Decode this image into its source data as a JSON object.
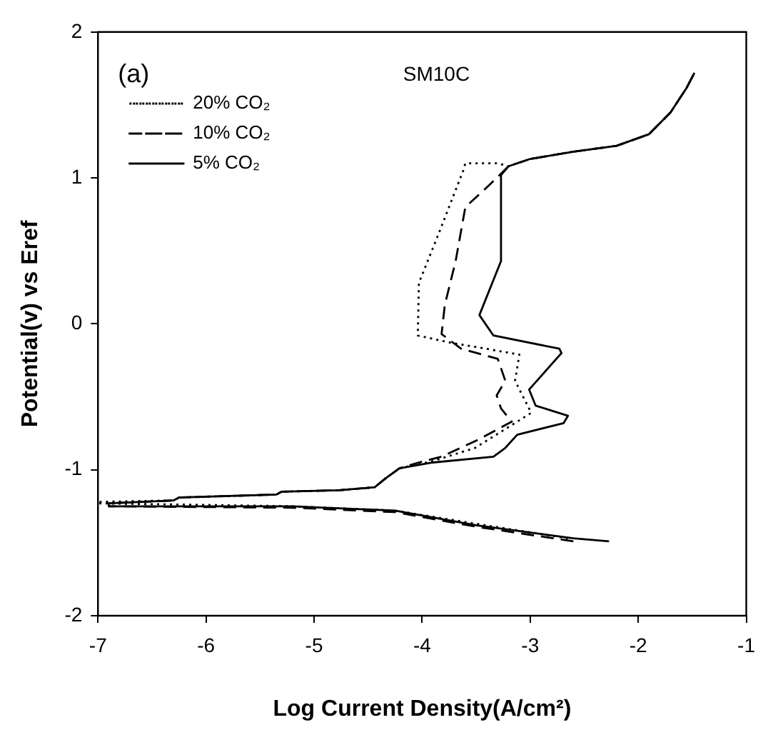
{
  "chart_data": {
    "type": "line",
    "title": "SM10C",
    "xlabel": "Log Current Density(A/cm²)",
    "ylabel": "Potential(v) vs Eref",
    "annotations": [
      "(a)"
    ],
    "xlim": [
      -7,
      -1
    ],
    "xticks": [
      -7,
      -6,
      -5,
      -4,
      -3,
      -2,
      -1
    ],
    "ylim": [
      -2,
      2
    ],
    "yticks": [
      -2,
      -1,
      0,
      1,
      2
    ],
    "legend": "top left",
    "marker": "none",
    "series": [
      {
        "name": "20% CO₂",
        "color": "#000000",
        "line_style": "dotted",
        "x": [
          -2.65,
          -3.5,
          -4.25,
          -5.2,
          -7.0,
          -7.0,
          -6.3,
          -6.25,
          -5.35,
          -5.3,
          -4.77,
          -4.44,
          -4.34,
          -4.21,
          -3.9,
          -3.51,
          -2.99,
          -3.14,
          -3.1,
          -3.73,
          -4.04,
          -4.03,
          -3.83,
          -3.62,
          -3.6,
          -3.3,
          -3.2,
          -3.0,
          -2.6,
          -2.2,
          -1.9,
          -1.7,
          -1.55,
          -1.48
        ],
        "values": [
          -1.47,
          -1.37,
          -1.28,
          -1.25,
          -1.23,
          -1.22,
          -1.21,
          -1.19,
          -1.17,
          -1.15,
          -1.14,
          -1.12,
          -1.06,
          -0.99,
          -0.94,
          -0.85,
          -0.61,
          -0.39,
          -0.21,
          -0.13,
          -0.08,
          0.28,
          0.65,
          1.05,
          1.1,
          1.1,
          1.08,
          1.13,
          1.18,
          1.22,
          1.3,
          1.45,
          1.62,
          1.72
        ]
      },
      {
        "name": "10% CO₂",
        "color": "#000000",
        "line_style": "dashed",
        "x": [
          -2.6,
          -3.5,
          -4.25,
          -5.2,
          -6.9,
          -6.9,
          -6.3,
          -6.25,
          -5.35,
          -5.3,
          -4.77,
          -4.44,
          -4.34,
          -4.21,
          -4.03,
          -3.82,
          -3.47,
          -3.17,
          -3.27,
          -3.31,
          -3.23,
          -3.3,
          -3.64,
          -3.82,
          -3.79,
          -3.69,
          -3.6,
          -3.38,
          -3.2,
          -3.0,
          -2.6,
          -2.2,
          -1.9,
          -1.7,
          -1.55,
          -1.48
        ],
        "values": [
          -1.49,
          -1.39,
          -1.29,
          -1.26,
          -1.25,
          -1.23,
          -1.21,
          -1.19,
          -1.17,
          -1.15,
          -1.14,
          -1.12,
          -1.06,
          -0.99,
          -0.95,
          -0.91,
          -0.79,
          -0.67,
          -0.58,
          -0.49,
          -0.39,
          -0.24,
          -0.17,
          -0.07,
          0.13,
          0.43,
          0.8,
          0.95,
          1.08,
          1.13,
          1.18,
          1.22,
          1.3,
          1.45,
          1.62,
          1.72
        ]
      },
      {
        "name": "5% CO₂",
        "color": "#000000",
        "line_style": "solid",
        "x": [
          -2.27,
          -2.6,
          -3.5,
          -4.25,
          -5.2,
          -6.9,
          -6.9,
          -6.3,
          -6.25,
          -5.35,
          -5.3,
          -4.77,
          -4.44,
          -4.34,
          -4.21,
          -3.9,
          -3.34,
          -3.23,
          -3.12,
          -2.69,
          -2.65,
          -2.95,
          -3.01,
          -2.71,
          -2.73,
          -3.34,
          -3.47,
          -3.27,
          -3.27,
          -3.2,
          -3.0,
          -2.6,
          -2.2,
          -1.9,
          -1.7,
          -1.55,
          -1.48
        ],
        "values": [
          -1.49,
          -1.47,
          -1.38,
          -1.28,
          -1.25,
          -1.25,
          -1.23,
          -1.21,
          -1.19,
          -1.17,
          -1.15,
          -1.14,
          -1.12,
          -1.06,
          -0.99,
          -0.95,
          -0.91,
          -0.85,
          -0.76,
          -0.68,
          -0.63,
          -0.56,
          -0.45,
          -0.2,
          -0.17,
          -0.08,
          0.06,
          0.43,
          1.02,
          1.08,
          1.13,
          1.18,
          1.22,
          1.3,
          1.45,
          1.62,
          1.72
        ]
      }
    ]
  }
}
